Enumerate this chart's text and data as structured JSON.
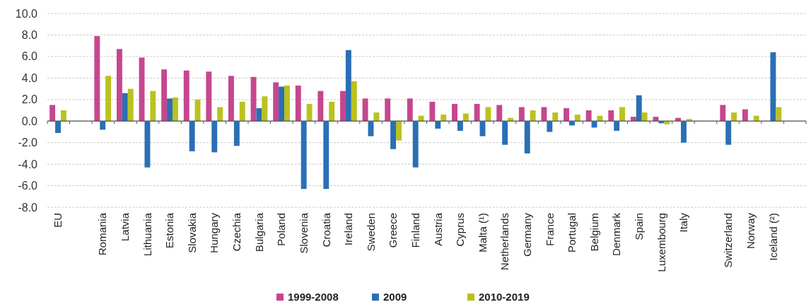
{
  "chart_data": {
    "type": "bar",
    "categories": [
      "EU",
      null,
      "Romania",
      "Latvia",
      "Lithuania",
      "Estonia",
      "Slovakia",
      "Hungary",
      "Czechia",
      "Bulgaria",
      "Poland",
      "Slovenia",
      "Croatia",
      "Ireland",
      "Sweden",
      "Greece",
      "Finland",
      "Austria",
      "Cyprus",
      "Malta (¹)",
      "Netherlands",
      "Germany",
      "France",
      "Portugal",
      "Belgium",
      "Denmark",
      "Spain",
      "Luxembourg",
      "Italy",
      null,
      "Switzerland",
      "Norway",
      "Iceland (²)",
      null
    ],
    "series": [
      {
        "name": "1999-2008",
        "color": "#c6468f",
        "values": [
          1.5,
          null,
          7.9,
          6.7,
          5.9,
          4.8,
          4.7,
          4.6,
          4.2,
          4.1,
          3.6,
          3.3,
          2.8,
          2.8,
          2.1,
          2.1,
          2.1,
          1.8,
          1.6,
          1.6,
          1.5,
          1.3,
          1.3,
          1.2,
          1.0,
          1.0,
          0.4,
          0.4,
          0.3,
          null,
          1.5,
          1.1,
          null,
          null
        ]
      },
      {
        "name": "2009",
        "color": "#2a6fb5",
        "values": [
          -1.1,
          null,
          -0.8,
          2.6,
          -4.3,
          2.1,
          -2.8,
          -2.9,
          -2.3,
          1.2,
          3.2,
          -6.3,
          -6.3,
          6.6,
          -1.4,
          -2.6,
          -4.3,
          -0.7,
          -0.9,
          -1.4,
          -2.2,
          -3.0,
          -1.0,
          -0.4,
          -0.6,
          -0.9,
          2.4,
          -0.2,
          -2.0,
          null,
          -2.2,
          null,
          6.4,
          null
        ]
      },
      {
        "name": "2010-2019",
        "color": "#b9c21e",
        "values": [
          1.0,
          null,
          4.2,
          3.0,
          2.8,
          2.2,
          2.0,
          1.3,
          1.8,
          2.3,
          3.3,
          1.6,
          1.8,
          3.7,
          0.8,
          -1.8,
          0.5,
          0.6,
          0.7,
          1.3,
          0.3,
          1.0,
          0.8,
          0.6,
          0.5,
          1.3,
          0.8,
          -0.3,
          0.2,
          null,
          0.8,
          0.5,
          1.3,
          null
        ]
      }
    ],
    "ylim": [
      -8,
      10
    ],
    "yticks": [
      {
        "value": -8,
        "label": "-8.0"
      },
      {
        "value": -6,
        "label": "-6.0"
      },
      {
        "value": -4,
        "label": "-4.0"
      },
      {
        "value": -2,
        "label": "-2.0"
      },
      {
        "value": 0,
        "label": "0.0"
      },
      {
        "value": 2,
        "label": "2.0"
      },
      {
        "value": 4,
        "label": "4.0"
      },
      {
        "value": 6,
        "label": "6.0"
      },
      {
        "value": 8,
        "label": "8.0"
      },
      {
        "value": 10,
        "label": "10.0"
      }
    ],
    "grid": "y",
    "legend": "bottom"
  }
}
